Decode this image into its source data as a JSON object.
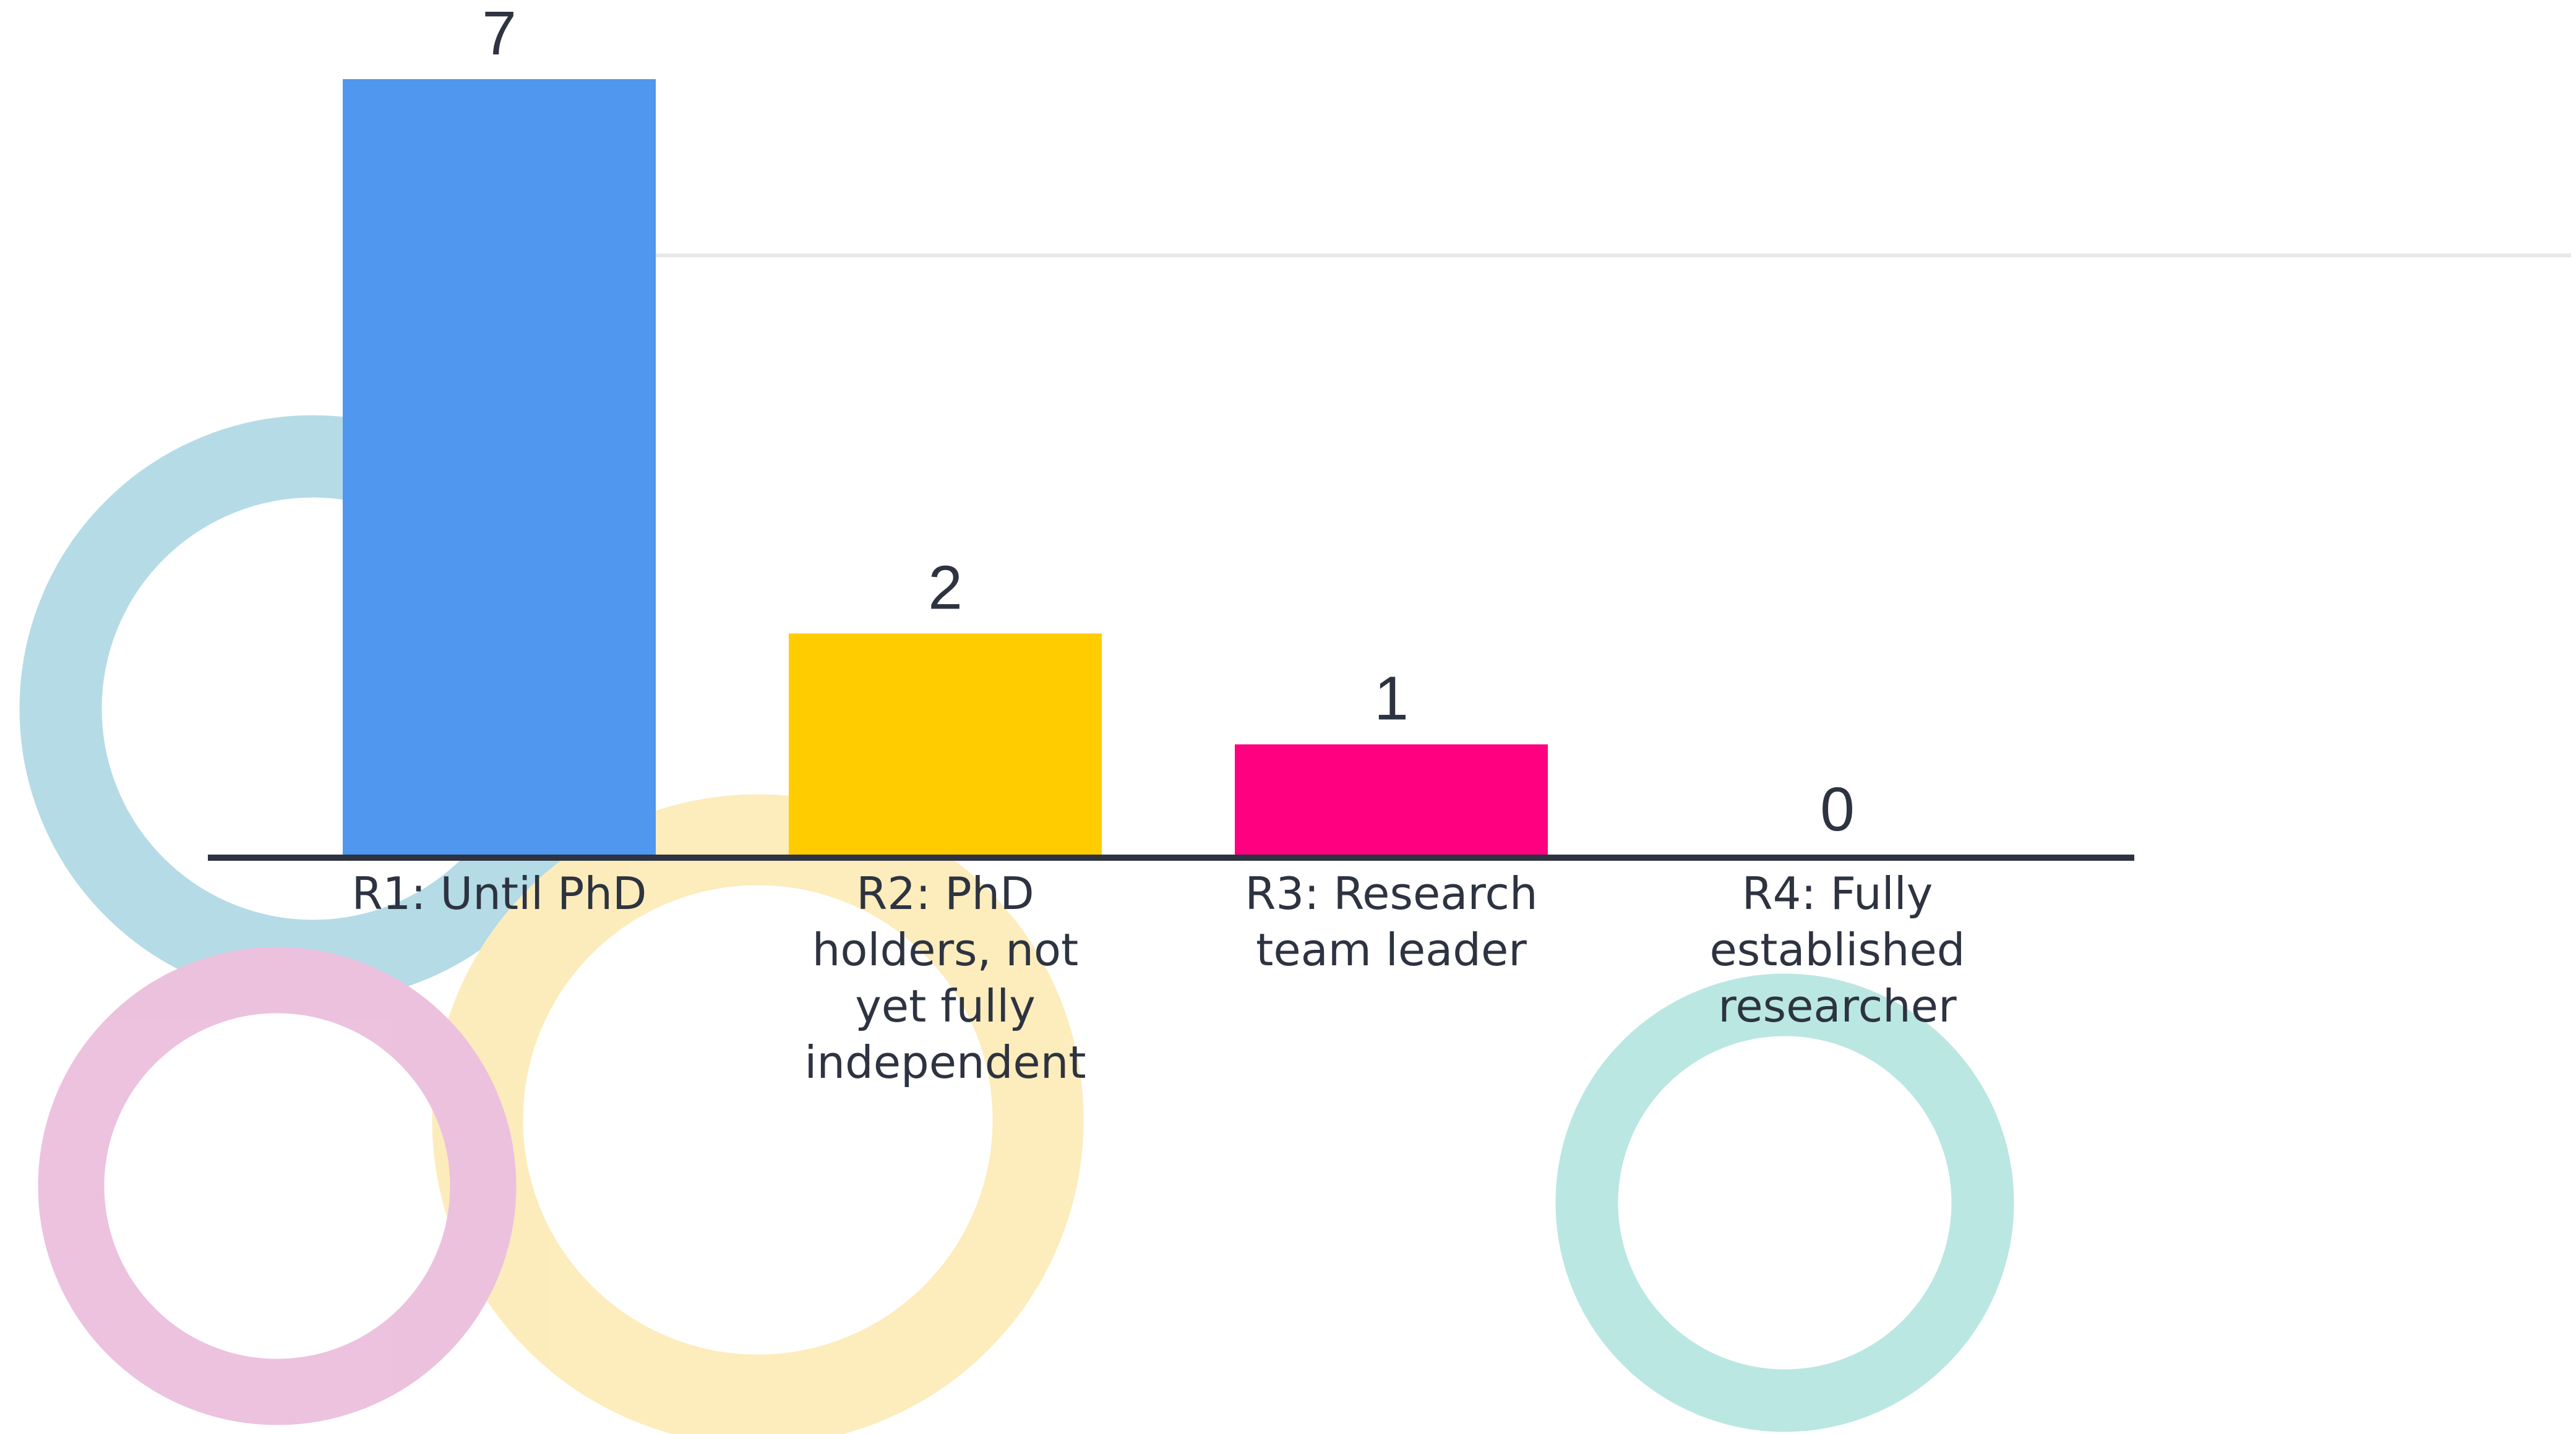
{
  "chart_data": {
    "type": "bar",
    "categories": [
      "R1: Until PhD",
      "R2: PhD holders, not yet fully independent",
      "R3: Research team leader",
      "R4: Fully established researcher"
    ],
    "values": [
      7,
      2,
      1,
      0
    ],
    "colors": [
      "#4f97ef",
      "#ffcc00",
      "#ff0080",
      "#9aa4b0"
    ]
  }
}
